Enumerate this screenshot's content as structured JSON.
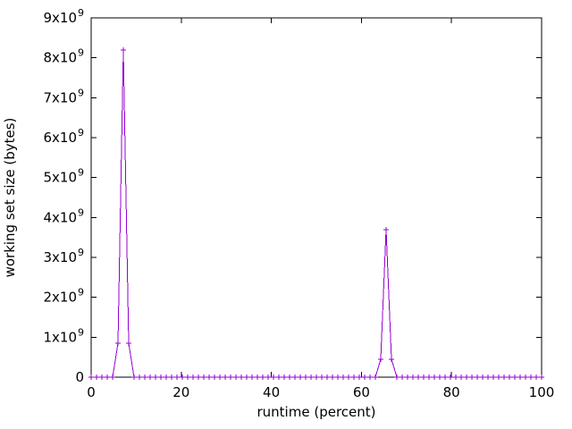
{
  "chart_data": {
    "type": "line",
    "style": "linespoints",
    "marker": "plus",
    "marker_size": 3,
    "series_color": "#9400d3",
    "axis_color": "#000000",
    "background_color": "#ffffff",
    "title": "",
    "xlabel": "runtime (percent)",
    "ylabel": "working set size (bytes)",
    "xlim": [
      0,
      100
    ],
    "ylim": [
      0,
      9000000000
    ],
    "x_ticks": [
      0,
      20,
      40,
      60,
      80,
      100
    ],
    "y_ticks": [
      {
        "value": 0,
        "label": "0"
      },
      {
        "value": 1000000000,
        "label": "1x10^9"
      },
      {
        "value": 2000000000,
        "label": "2x10^9"
      },
      {
        "value": 3000000000,
        "label": "3x10^9"
      },
      {
        "value": 4000000000,
        "label": "4x10^9"
      },
      {
        "value": 5000000000,
        "label": "5x10^9"
      },
      {
        "value": 6000000000,
        "label": "6x10^9"
      },
      {
        "value": 7000000000,
        "label": "7x10^9"
      },
      {
        "value": 8000000000,
        "label": "8x10^9"
      },
      {
        "value": 9000000000,
        "label": "9x10^9"
      }
    ],
    "grid": false,
    "legend": "none",
    "sampling": {
      "x_start": 0,
      "x_end": 100,
      "num_points": 85
    },
    "baseline_value": 0,
    "spikes": [
      {
        "x_percent": 5.95,
        "value": 850000000
      },
      {
        "x_percent": 7.14,
        "value": 8200000000
      },
      {
        "x_percent": 8.33,
        "value": 850000000
      },
      {
        "x_percent": 64.29,
        "value": 450000000
      },
      {
        "x_percent": 65.48,
        "value": 3700000000
      },
      {
        "x_percent": 66.67,
        "value": 450000000
      }
    ]
  }
}
